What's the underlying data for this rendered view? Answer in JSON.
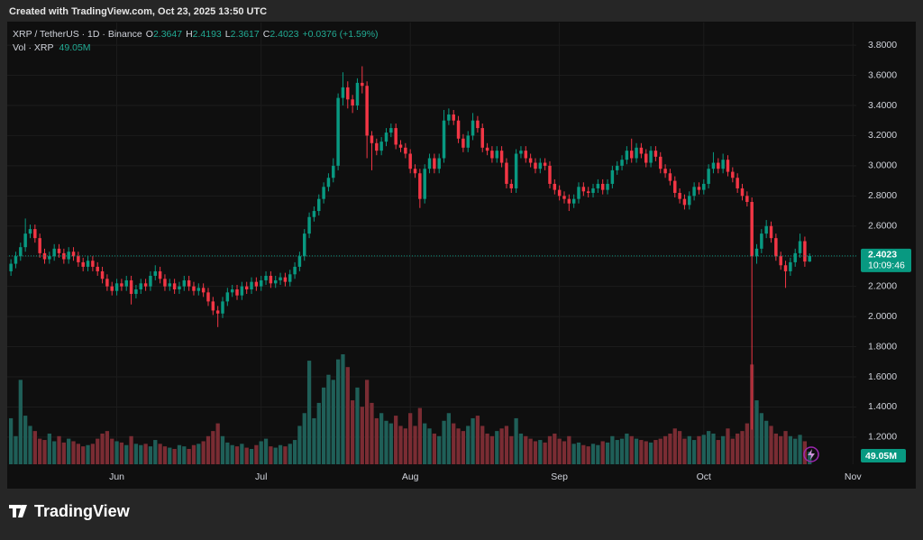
{
  "chart_data": {
    "type": "candlestick",
    "caption": "Created with TradingView.com, Oct 23, 2025 13:50 UTC",
    "brand": "TradingView",
    "legend": {
      "symbol": "XRP / TetherUS · 1D · Binance",
      "o_key": "O",
      "o": "2.3647",
      "h_key": "H",
      "h": "2.4193",
      "l_key": "L",
      "l": "2.3617",
      "c_key": "C",
      "c": "2.4023",
      "change": "+0.0376 (+1.59%)",
      "vol_name": "Vol · XRP",
      "vol": "49.05M"
    },
    "last_price_label": "2.4023",
    "countdown": "10:09:46",
    "colors": {
      "up": "#089981",
      "down": "#f23645",
      "volume_up": "#1f5f58",
      "volume_down": "#7a2c33",
      "price_line": "#089981"
    },
    "grid": true,
    "xlim": [
      -0.4,
      175.7
    ],
    "xticks": [
      {
        "value": 22,
        "label": "Jun"
      },
      {
        "value": 52,
        "label": "Jul"
      },
      {
        "value": 83,
        "label": "Aug"
      },
      {
        "value": 114,
        "label": "Sep"
      },
      {
        "value": 144,
        "label": "Oct"
      },
      {
        "value": 175,
        "label": "Nov"
      }
    ],
    "ylim": [
      1.02,
      3.95
    ],
    "yticks": [
      {
        "value": 1.2,
        "label": "1.2000"
      },
      {
        "value": 1.4,
        "label": "1.4000"
      },
      {
        "value": 1.6,
        "label": "1.6000"
      },
      {
        "value": 1.8,
        "label": "1.8000"
      },
      {
        "value": 2,
        "label": "2.0000"
      },
      {
        "value": 2.2,
        "label": "2.2000"
      },
      {
        "value": 2.4,
        "label": "2.4000"
      },
      {
        "value": 2.6,
        "label": "2.6000"
      },
      {
        "value": 2.8,
        "label": "2.8000"
      },
      {
        "value": 3,
        "label": "3.0000"
      },
      {
        "value": 3.2,
        "label": "3.2000"
      },
      {
        "value": 3.4,
        "label": "3.4000"
      },
      {
        "value": 3.6,
        "label": "3.6000"
      },
      {
        "value": 3.8,
        "label": "3.8000"
      }
    ],
    "open": [
      2.3,
      2.35,
      2.4,
      2.46,
      2.55,
      2.58,
      2.52,
      2.42,
      2.38,
      2.4,
      2.45,
      2.42,
      2.38,
      2.43,
      2.4,
      2.36,
      2.33,
      2.37,
      2.33,
      2.3,
      2.25,
      2.2,
      2.17,
      2.22,
      2.2,
      2.24,
      2.15,
      2.18,
      2.22,
      2.2,
      2.27,
      2.3,
      2.25,
      2.2,
      2.22,
      2.18,
      2.2,
      2.24,
      2.2,
      2.17,
      2.19,
      2.16,
      2.1,
      2.04,
      2.02,
      2.1,
      2.16,
      2.18,
      2.14,
      2.2,
      2.18,
      2.23,
      2.2,
      2.24,
      2.27,
      2.22,
      2.24,
      2.26,
      2.23,
      2.28,
      2.33,
      2.4,
      2.55,
      2.66,
      2.7,
      2.78,
      2.86,
      2.92,
      3.0,
      3.45,
      3.52,
      3.44,
      3.4,
      3.55,
      3.53,
      3.2,
      3.15,
      3.1,
      3.16,
      3.22,
      3.25,
      3.14,
      3.12,
      3.08,
      2.98,
      2.95,
      2.78,
      2.98,
      3.05,
      2.98,
      3.05,
      3.3,
      3.34,
      3.3,
      3.18,
      3.12,
      3.2,
      3.3,
      3.25,
      3.12,
      3.1,
      3.05,
      3.1,
      3.02,
      2.88,
      2.85,
      3.08,
      3.1,
      3.05,
      3.02,
      2.98,
      3.02,
      3.0,
      2.88,
      2.84,
      2.8,
      2.78,
      2.75,
      2.78,
      2.86,
      2.83,
      2.82,
      2.85,
      2.88,
      2.84,
      2.88,
      2.97,
      3.0,
      3.04,
      3.1,
      3.05,
      3.12,
      3.08,
      3.02,
      3.1,
      3.06,
      2.98,
      2.95,
      2.9,
      2.82,
      2.78,
      2.74,
      2.8,
      2.86,
      2.84,
      2.88,
      2.98,
      3.02,
      2.98,
      3.04,
      2.96,
      2.92,
      2.85,
      2.8,
      2.76,
      2.4,
      2.45,
      2.55,
      2.6,
      2.52,
      2.4,
      2.34,
      2.3,
      2.36,
      2.42,
      2.5,
      2.3647
    ],
    "high": [
      2.38,
      2.43,
      2.49,
      2.65,
      2.61,
      2.61,
      2.55,
      2.45,
      2.43,
      2.48,
      2.48,
      2.45,
      2.46,
      2.46,
      2.43,
      2.39,
      2.4,
      2.4,
      2.36,
      2.33,
      2.28,
      2.23,
      2.25,
      2.25,
      2.27,
      2.27,
      2.21,
      2.25,
      2.25,
      2.3,
      2.34,
      2.33,
      2.28,
      2.25,
      2.25,
      2.23,
      2.27,
      2.27,
      2.23,
      2.22,
      2.22,
      2.19,
      2.13,
      2.07,
      2.13,
      2.19,
      2.21,
      2.21,
      2.23,
      2.23,
      2.26,
      2.26,
      2.27,
      2.3,
      2.3,
      2.27,
      2.29,
      2.29,
      2.31,
      2.36,
      2.43,
      2.58,
      2.69,
      2.73,
      2.81,
      2.89,
      2.95,
      3.05,
      3.48,
      3.62,
      3.56,
      3.47,
      3.58,
      3.66,
      3.56,
      3.23,
      3.18,
      3.19,
      3.25,
      3.28,
      3.28,
      3.17,
      3.15,
      3.11,
      3.01,
      2.98,
      3.01,
      3.08,
      3.08,
      3.08,
      3.37,
      3.38,
      3.37,
      3.33,
      3.21,
      3.23,
      3.35,
      3.33,
      3.28,
      3.15,
      3.13,
      3.13,
      3.13,
      3.05,
      2.91,
      3.11,
      3.13,
      3.13,
      3.08,
      3.05,
      3.05,
      3.05,
      3.03,
      2.91,
      2.87,
      2.83,
      2.81,
      2.81,
      2.89,
      2.89,
      2.86,
      2.88,
      2.91,
      2.91,
      2.91,
      3.0,
      3.03,
      3.07,
      3.13,
      3.18,
      3.15,
      3.15,
      3.11,
      3.13,
      3.13,
      3.09,
      3.01,
      2.98,
      2.93,
      2.85,
      2.81,
      2.83,
      2.89,
      2.89,
      2.91,
      3.01,
      3.09,
      3.05,
      3.08,
      3.07,
      2.99,
      2.95,
      2.88,
      2.83,
      2.79,
      2.48,
      2.58,
      2.64,
      2.63,
      2.55,
      2.43,
      2.37,
      2.39,
      2.45,
      2.55,
      2.53,
      2.4193
    ],
    "low": [
      2.27,
      2.32,
      2.37,
      2.43,
      2.52,
      2.49,
      2.39,
      2.35,
      2.35,
      2.37,
      2.39,
      2.35,
      2.35,
      2.37,
      2.33,
      2.3,
      2.3,
      2.3,
      2.27,
      2.22,
      2.17,
      2.14,
      2.14,
      2.17,
      2.17,
      2.08,
      2.12,
      2.15,
      2.17,
      2.17,
      2.24,
      2.22,
      2.17,
      2.17,
      2.15,
      2.15,
      2.17,
      2.17,
      2.14,
      2.14,
      2.13,
      2.07,
      2.01,
      1.93,
      1.99,
      2.07,
      2.13,
      2.11,
      2.11,
      2.15,
      2.15,
      2.17,
      2.17,
      2.21,
      2.19,
      2.19,
      2.21,
      2.2,
      2.2,
      2.25,
      2.3,
      2.37,
      2.52,
      2.63,
      2.67,
      2.75,
      2.83,
      2.89,
      2.97,
      3.4,
      3.38,
      3.35,
      3.37,
      3.48,
      3.05,
      2.97,
      3.07,
      3.07,
      3.13,
      3.19,
      3.11,
      3.09,
      3.05,
      2.95,
      2.92,
      2.72,
      2.75,
      2.95,
      2.95,
      2.95,
      3.02,
      3.27,
      3.27,
      3.15,
      3.09,
      3.09,
      3.17,
      3.22,
      3.09,
      3.07,
      3.02,
      3.02,
      2.99,
      2.85,
      2.82,
      2.82,
      3.05,
      3.02,
      2.99,
      2.95,
      2.95,
      2.97,
      2.85,
      2.81,
      2.77,
      2.75,
      2.7,
      2.72,
      2.75,
      2.8,
      2.79,
      2.79,
      2.82,
      2.81,
      2.81,
      2.85,
      2.94,
      2.97,
      3.01,
      3.02,
      3.02,
      3.05,
      2.99,
      2.99,
      3.03,
      2.95,
      2.92,
      2.87,
      2.79,
      2.75,
      2.71,
      2.71,
      2.77,
      2.81,
      2.81,
      2.85,
      2.95,
      2.95,
      2.95,
      2.93,
      2.89,
      2.82,
      2.77,
      2.73,
      1.25,
      2.35,
      2.42,
      2.52,
      2.49,
      2.37,
      2.31,
      2.19,
      2.27,
      2.33,
      2.39,
      2.33,
      2.3617
    ],
    "close": [
      2.35,
      2.4,
      2.46,
      2.55,
      2.58,
      2.52,
      2.42,
      2.38,
      2.4,
      2.45,
      2.42,
      2.38,
      2.43,
      2.4,
      2.36,
      2.33,
      2.37,
      2.33,
      2.3,
      2.25,
      2.2,
      2.17,
      2.22,
      2.2,
      2.24,
      2.15,
      2.18,
      2.22,
      2.2,
      2.27,
      2.3,
      2.25,
      2.2,
      2.22,
      2.18,
      2.2,
      2.24,
      2.2,
      2.17,
      2.19,
      2.16,
      2.1,
      2.04,
      2.02,
      2.1,
      2.16,
      2.18,
      2.14,
      2.2,
      2.18,
      2.23,
      2.2,
      2.24,
      2.27,
      2.22,
      2.24,
      2.26,
      2.23,
      2.28,
      2.33,
      2.4,
      2.55,
      2.66,
      2.7,
      2.78,
      2.86,
      2.92,
      3.0,
      3.45,
      3.52,
      3.44,
      3.4,
      3.55,
      3.53,
      3.2,
      3.15,
      3.1,
      3.16,
      3.22,
      3.25,
      3.14,
      3.12,
      3.08,
      2.98,
      2.95,
      2.78,
      2.98,
      3.05,
      2.98,
      3.05,
      3.3,
      3.34,
      3.3,
      3.18,
      3.12,
      3.2,
      3.3,
      3.25,
      3.12,
      3.1,
      3.05,
      3.1,
      3.02,
      2.88,
      2.85,
      3.08,
      3.1,
      3.05,
      3.02,
      2.98,
      3.02,
      3.0,
      2.88,
      2.84,
      2.8,
      2.78,
      2.75,
      2.78,
      2.86,
      2.83,
      2.82,
      2.85,
      2.88,
      2.84,
      2.88,
      2.97,
      3.0,
      3.04,
      3.1,
      3.05,
      3.12,
      3.08,
      3.02,
      3.1,
      3.06,
      2.98,
      2.95,
      2.9,
      2.82,
      2.78,
      2.74,
      2.8,
      2.86,
      2.84,
      2.88,
      2.98,
      3.02,
      2.98,
      3.04,
      2.96,
      2.92,
      2.85,
      2.8,
      2.76,
      2.4,
      2.45,
      2.55,
      2.6,
      2.52,
      2.4,
      2.34,
      2.3,
      2.36,
      2.42,
      2.5,
      2.3647,
      2.4023
    ],
    "volume": [
      180,
      110,
      330,
      190,
      150,
      130,
      100,
      95,
      120,
      90,
      110,
      85,
      100,
      90,
      80,
      70,
      75,
      80,
      100,
      120,
      130,
      100,
      90,
      85,
      75,
      110,
      80,
      75,
      80,
      70,
      95,
      80,
      70,
      65,
      60,
      75,
      70,
      60,
      75,
      80,
      90,
      110,
      130,
      160,
      110,
      85,
      75,
      70,
      80,
      65,
      60,
      75,
      90,
      100,
      70,
      65,
      75,
      70,
      80,
      95,
      150,
      200,
      405,
      180,
      240,
      300,
      350,
      330,
      410,
      430,
      380,
      250,
      300,
      225,
      330,
      240,
      180,
      200,
      170,
      160,
      190,
      150,
      140,
      200,
      150,
      220,
      160,
      140,
      120,
      110,
      170,
      200,
      160,
      140,
      130,
      150,
      180,
      190,
      150,
      120,
      110,
      130,
      140,
      150,
      110,
      180,
      120,
      110,
      100,
      90,
      95,
      85,
      110,
      120,
      100,
      90,
      110,
      80,
      85,
      75,
      70,
      80,
      75,
      90,
      85,
      110,
      95,
      100,
      120,
      110,
      100,
      95,
      90,
      85,
      95,
      100,
      110,
      120,
      140,
      130,
      100,
      110,
      95,
      110,
      115,
      130,
      120,
      95,
      110,
      140,
      100,
      120,
      130,
      160,
      390,
      250,
      200,
      170,
      150,
      120,
      110,
      130,
      110,
      100,
      115,
      90,
      49.05
    ]
  }
}
